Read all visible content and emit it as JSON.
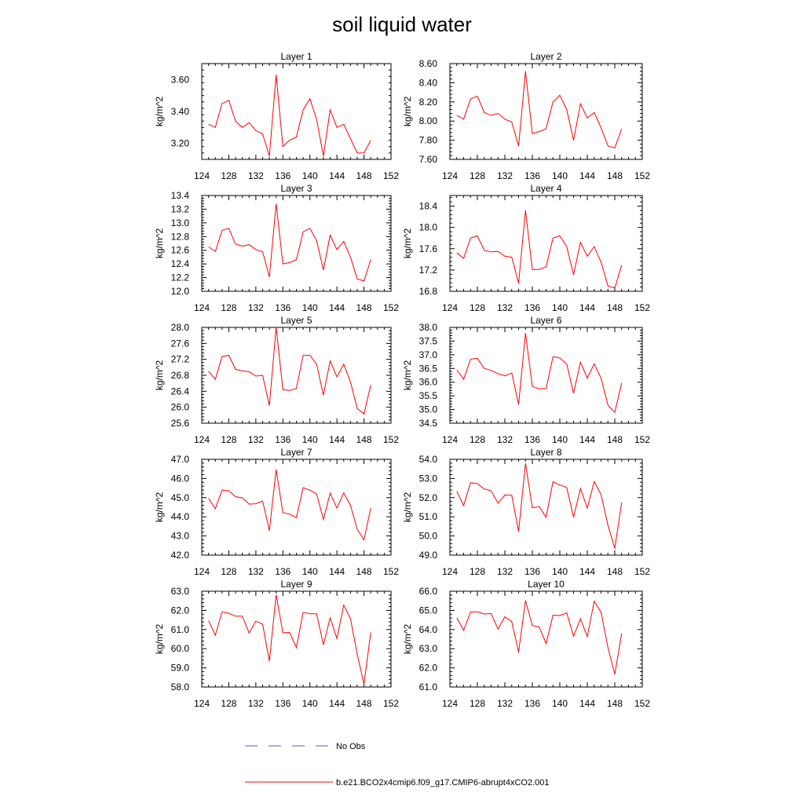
{
  "title": "soil liquid water",
  "legend": [
    {
      "label": "No Obs",
      "color": "#5555cc",
      "style": "dashed"
    },
    {
      "label": "b.e21.BCO2x4cmip6.f09_g17.CMIP6-abrupt4xCO2.001",
      "color": "#ff0000",
      "style": "solid"
    }
  ],
  "chart_data": [
    {
      "type": "line",
      "title": "Layer 1",
      "ylabel": "kg/m^2",
      "x": [
        125,
        126,
        127,
        128,
        129,
        130,
        131,
        132,
        133,
        134,
        135,
        136,
        137,
        138,
        139,
        140,
        141,
        142,
        143,
        144,
        145,
        146,
        147,
        148,
        149
      ],
      "xlim": [
        124,
        152
      ],
      "xticks": [
        "124",
        "128",
        "132",
        "136",
        "140",
        "144",
        "148",
        "152"
      ],
      "ylim": [
        3.1,
        3.7
      ],
      "yticks": [
        "3.20",
        "3.40",
        "3.60"
      ],
      "series": [
        {
          "color": "#ff0000",
          "values": [
            3.32,
            3.3,
            3.45,
            3.47,
            3.34,
            3.3,
            3.33,
            3.28,
            3.26,
            3.12,
            3.63,
            3.18,
            3.22,
            3.24,
            3.41,
            3.48,
            3.35,
            3.12,
            3.41,
            3.3,
            3.32,
            3.23,
            3.14,
            3.14,
            3.22
          ]
        }
      ]
    },
    {
      "type": "line",
      "title": "Layer 2",
      "ylabel": "kg/m^2",
      "x": [
        125,
        126,
        127,
        128,
        129,
        130,
        131,
        132,
        133,
        134,
        135,
        136,
        137,
        138,
        139,
        140,
        141,
        142,
        143,
        144,
        145,
        146,
        147,
        148,
        149
      ],
      "xlim": [
        124,
        152
      ],
      "xticks": [
        "124",
        "128",
        "132",
        "136",
        "140",
        "144",
        "148",
        "152"
      ],
      "ylim": [
        7.6,
        8.6
      ],
      "yticks": [
        "7.60",
        "7.80",
        "8.00",
        "8.20",
        "8.40",
        "8.60"
      ],
      "series": [
        {
          "color": "#ff0000",
          "values": [
            8.06,
            8.02,
            8.23,
            8.26,
            8.09,
            8.06,
            8.08,
            8.02,
            7.99,
            7.74,
            8.52,
            7.87,
            7.89,
            7.92,
            8.2,
            8.27,
            8.12,
            7.8,
            8.18,
            8.03,
            8.09,
            7.93,
            7.74,
            7.72,
            7.92
          ]
        }
      ]
    },
    {
      "type": "line",
      "title": "Layer 3",
      "ylabel": "kg/m^2",
      "x": [
        125,
        126,
        127,
        128,
        129,
        130,
        131,
        132,
        133,
        134,
        135,
        136,
        137,
        138,
        139,
        140,
        141,
        142,
        143,
        144,
        145,
        146,
        147,
        148,
        149
      ],
      "xlim": [
        124,
        152
      ],
      "xticks": [
        "124",
        "128",
        "132",
        "136",
        "140",
        "144",
        "148",
        "152"
      ],
      "ylim": [
        12.0,
        13.4
      ],
      "yticks": [
        "12.0",
        "12.2",
        "12.4",
        "12.6",
        "12.8",
        "13.0",
        "13.2",
        "13.4"
      ],
      "series": [
        {
          "color": "#ff0000",
          "values": [
            12.65,
            12.58,
            12.89,
            12.92,
            12.69,
            12.66,
            12.68,
            12.61,
            12.58,
            12.21,
            13.28,
            12.4,
            12.42,
            12.46,
            12.87,
            12.92,
            12.74,
            12.31,
            12.82,
            12.61,
            12.73,
            12.5,
            12.18,
            12.15,
            12.46
          ]
        }
      ]
    },
    {
      "type": "line",
      "title": "Layer 4",
      "ylabel": "kg/m^2",
      "x": [
        125,
        126,
        127,
        128,
        129,
        130,
        131,
        132,
        133,
        134,
        135,
        136,
        137,
        138,
        139,
        140,
        141,
        142,
        143,
        144,
        145,
        146,
        147,
        148,
        149
      ],
      "xlim": [
        124,
        152
      ],
      "xticks": [
        "124",
        "128",
        "132",
        "136",
        "140",
        "144",
        "148",
        "152"
      ],
      "ylim": [
        16.8,
        18.6
      ],
      "yticks": [
        "16.8",
        "17.2",
        "17.6",
        "18.0",
        "18.4"
      ],
      "series": [
        {
          "color": "#ff0000",
          "values": [
            17.52,
            17.42,
            17.8,
            17.84,
            17.57,
            17.54,
            17.55,
            17.46,
            17.44,
            16.95,
            18.32,
            17.21,
            17.21,
            17.26,
            17.8,
            17.84,
            17.64,
            17.11,
            17.72,
            17.46,
            17.64,
            17.35,
            16.9,
            16.86,
            17.29
          ]
        }
      ]
    },
    {
      "type": "line",
      "title": "Layer 5",
      "ylabel": "kg/m^2",
      "x": [
        125,
        126,
        127,
        128,
        129,
        130,
        131,
        132,
        133,
        134,
        135,
        136,
        137,
        138,
        139,
        140,
        141,
        142,
        143,
        144,
        145,
        146,
        147,
        148,
        149
      ],
      "xlim": [
        124,
        152
      ],
      "xticks": [
        "124",
        "128",
        "132",
        "136",
        "140",
        "144",
        "148",
        "152"
      ],
      "ylim": [
        25.6,
        28.0
      ],
      "yticks": [
        "25.6",
        "26.0",
        "26.4",
        "26.8",
        "27.2",
        "27.6",
        "28.0"
      ],
      "series": [
        {
          "color": "#ff0000",
          "values": [
            26.9,
            26.7,
            27.27,
            27.3,
            26.95,
            26.91,
            26.89,
            26.78,
            26.8,
            26.04,
            28.01,
            26.44,
            26.42,
            26.47,
            27.3,
            27.3,
            27.08,
            26.3,
            27.16,
            26.76,
            27.08,
            26.63,
            25.97,
            25.83,
            26.56
          ]
        }
      ]
    },
    {
      "type": "line",
      "title": "Layer 6",
      "ylabel": "kg/m^2",
      "x": [
        125,
        126,
        127,
        128,
        129,
        130,
        131,
        132,
        133,
        134,
        135,
        136,
        137,
        138,
        139,
        140,
        141,
        142,
        143,
        144,
        145,
        146,
        147,
        148,
        149
      ],
      "xlim": [
        124,
        152
      ],
      "xticks": [
        "124",
        "128",
        "132",
        "136",
        "140",
        "144",
        "148",
        "152"
      ],
      "ylim": [
        34.5,
        38.0
      ],
      "yticks": [
        "34.5",
        "35.0",
        "35.5",
        "36.0",
        "36.5",
        "37.0",
        "37.5",
        "38.0"
      ],
      "series": [
        {
          "color": "#ff0000",
          "values": [
            36.45,
            36.1,
            36.84,
            36.87,
            36.5,
            36.43,
            36.31,
            36.23,
            36.33,
            35.18,
            37.79,
            35.84,
            35.76,
            35.76,
            36.93,
            36.88,
            36.67,
            35.59,
            36.73,
            36.15,
            36.67,
            36.15,
            35.16,
            34.9,
            35.97
          ]
        }
      ]
    },
    {
      "type": "line",
      "title": "Layer 7",
      "ylabel": "kg/m^2",
      "x": [
        125,
        126,
        127,
        128,
        129,
        130,
        131,
        132,
        133,
        134,
        135,
        136,
        137,
        138,
        139,
        140,
        141,
        142,
        143,
        144,
        145,
        146,
        147,
        148,
        149
      ],
      "xlim": [
        124,
        152
      ],
      "xticks": [
        "124",
        "128",
        "132",
        "136",
        "140",
        "144",
        "148",
        "152"
      ],
      "ylim": [
        42.0,
        47.0
      ],
      "yticks": [
        "42.0",
        "43.0",
        "44.0",
        "45.0",
        "46.0",
        "47.0"
      ],
      "series": [
        {
          "color": "#ff0000",
          "values": [
            44.97,
            44.42,
            45.39,
            45.36,
            45.05,
            44.99,
            44.66,
            44.68,
            44.82,
            43.27,
            46.47,
            44.21,
            44.14,
            43.95,
            45.52,
            45.39,
            45.19,
            43.86,
            45.23,
            44.45,
            45.25,
            44.6,
            43.35,
            42.8,
            44.45
          ]
        }
      ]
    },
    {
      "type": "line",
      "title": "Layer 8",
      "ylabel": "kg/m^2",
      "x": [
        125,
        126,
        127,
        128,
        129,
        130,
        131,
        132,
        133,
        134,
        135,
        136,
        137,
        138,
        139,
        140,
        141,
        142,
        143,
        144,
        145,
        146,
        147,
        148,
        149
      ],
      "xlim": [
        124,
        152
      ],
      "xticks": [
        "124",
        "128",
        "132",
        "136",
        "140",
        "144",
        "148",
        "152"
      ],
      "ylim": [
        49.0,
        54.0
      ],
      "yticks": [
        "49.0",
        "50.0",
        "51.0",
        "52.0",
        "53.0",
        "54.0"
      ],
      "series": [
        {
          "color": "#ff0000",
          "values": [
            52.33,
            51.58,
            52.78,
            52.73,
            52.45,
            52.36,
            51.71,
            52.14,
            52.12,
            50.23,
            53.8,
            51.47,
            51.53,
            50.97,
            52.83,
            52.66,
            52.53,
            50.97,
            52.48,
            51.45,
            52.84,
            52.16,
            50.56,
            49.35,
            51.75
          ]
        }
      ]
    },
    {
      "type": "line",
      "title": "Layer 9",
      "ylabel": "kg/m^2",
      "x": [
        125,
        126,
        127,
        128,
        129,
        130,
        131,
        132,
        133,
        134,
        135,
        136,
        137,
        138,
        139,
        140,
        141,
        142,
        143,
        144,
        145,
        146,
        147,
        148,
        149
      ],
      "xlim": [
        124,
        152
      ],
      "xticks": [
        "124",
        "128",
        "132",
        "136",
        "140",
        "144",
        "148",
        "152"
      ],
      "ylim": [
        58.0,
        63.0
      ],
      "yticks": [
        "58.0",
        "59.0",
        "60.0",
        "61.0",
        "62.0",
        "63.0"
      ],
      "series": [
        {
          "color": "#ff0000",
          "values": [
            61.47,
            60.7,
            61.92,
            61.85,
            61.7,
            61.7,
            60.82,
            61.44,
            61.28,
            59.35,
            62.82,
            60.83,
            60.85,
            60.06,
            61.9,
            61.82,
            61.82,
            60.2,
            61.61,
            60.53,
            62.27,
            61.56,
            59.71,
            58.15,
            60.85
          ]
        }
      ]
    },
    {
      "type": "line",
      "title": "Layer 10",
      "ylabel": "kg/m^2",
      "x": [
        125,
        126,
        127,
        128,
        129,
        130,
        131,
        132,
        133,
        134,
        135,
        136,
        137,
        138,
        139,
        140,
        141,
        142,
        143,
        144,
        145,
        146,
        147,
        148,
        149
      ],
      "xlim": [
        124,
        152
      ],
      "xticks": [
        "124",
        "128",
        "132",
        "136",
        "140",
        "144",
        "148",
        "152"
      ],
      "ylim": [
        61.0,
        66.0
      ],
      "yticks": [
        "61.0",
        "62.0",
        "63.0",
        "64.0",
        "65.0",
        "66.0"
      ],
      "series": [
        {
          "color": "#ff0000",
          "values": [
            64.61,
            63.96,
            64.91,
            64.93,
            64.81,
            64.83,
            64.02,
            64.67,
            64.41,
            62.81,
            65.52,
            64.21,
            64.13,
            63.27,
            64.75,
            64.73,
            64.87,
            63.65,
            64.56,
            63.63,
            65.48,
            64.9,
            63.06,
            61.67,
            63.8
          ]
        }
      ]
    }
  ]
}
